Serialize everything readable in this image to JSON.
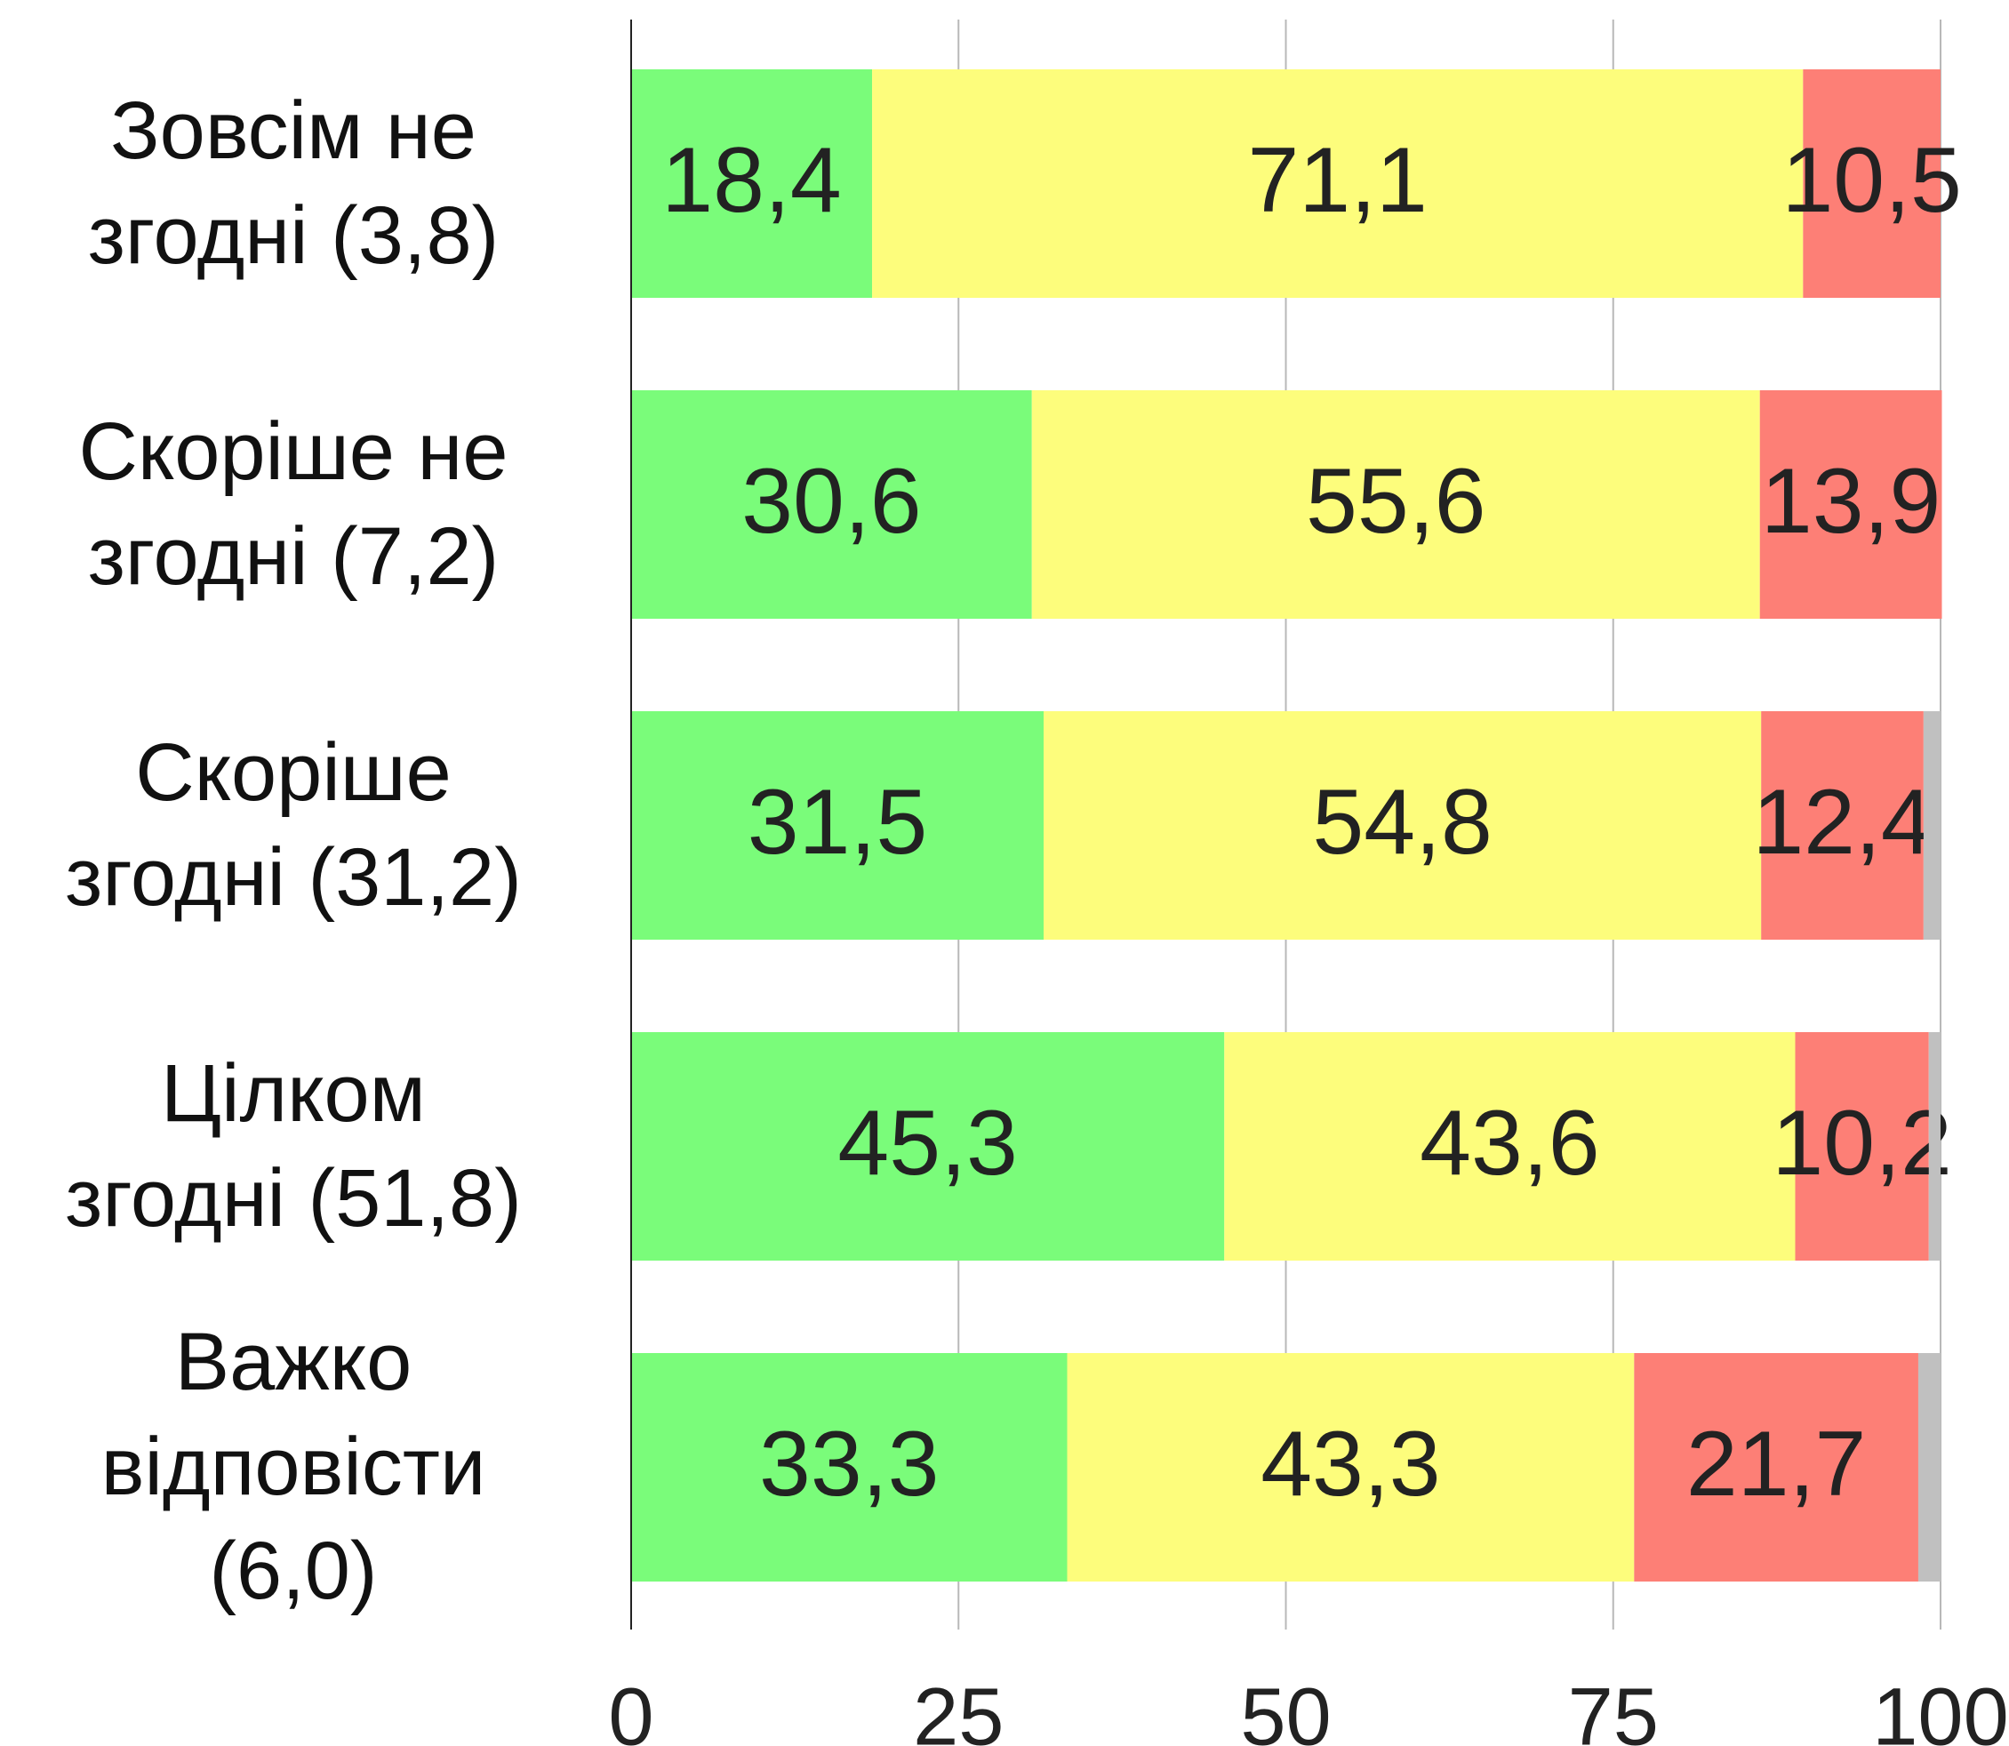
{
  "chart_data": {
    "type": "stacked-barh",
    "categories": [
      "Зовсім не\nзгодні (3,8)",
      "Скоріше не\nзгодні (7,2)",
      "Скоріше\nзгодні (31,2)",
      "Цілком\nзгодні (51,8)",
      "Важко\nвідповісти\n(6,0)"
    ],
    "series": [
      {
        "color": "#7afc7a",
        "values": [
          18.4,
          30.6,
          31.5,
          45.3,
          33.3
        ],
        "value_labels": [
          "18,4",
          "30,6",
          "31,5",
          "45,3",
          "33,3"
        ]
      },
      {
        "color": "#fdfd7c",
        "values": [
          71.1,
          55.6,
          54.8,
          43.6,
          43.3
        ],
        "value_labels": [
          "71,1",
          "55,6",
          "54,8",
          "43,6",
          "43,3"
        ]
      },
      {
        "color": "#fd7f76",
        "values": [
          10.5,
          13.9,
          12.4,
          10.2,
          21.7
        ],
        "value_labels": [
          "10,5",
          "13,9",
          "12,4",
          "10,2",
          "21,7"
        ]
      },
      {
        "color": "#c0c0c0",
        "values": [
          0,
          0,
          1.3,
          0.9,
          1.7
        ]
      }
    ],
    "xlim": [
      0,
      100
    ],
    "xticks": [
      0,
      25,
      50,
      75,
      100
    ],
    "grid": true
  }
}
